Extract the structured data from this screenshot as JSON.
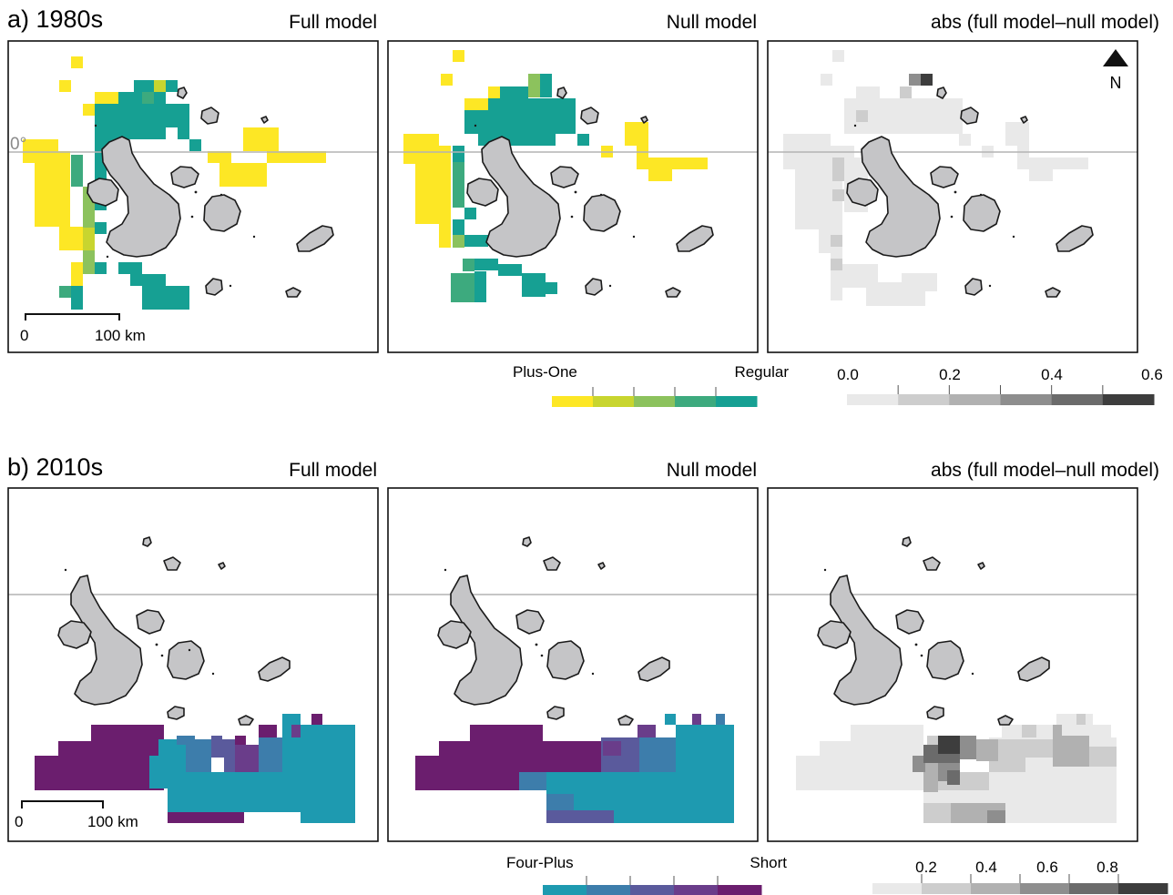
{
  "rows": [
    {
      "label": "a) 1980s",
      "panel_titles": [
        "Full model",
        "Null model",
        "abs (full model–null model)"
      ],
      "scale_bar": {
        "start": "0",
        "end": "100 km"
      },
      "equator_label": "0°",
      "north_label": "N",
      "category_legend": {
        "left": "Plus-One",
        "right": "Regular",
        "colors": [
          "#fde725",
          "#c8d52f",
          "#8cc25d",
          "#3daa7e",
          "#16a093"
        ]
      },
      "diff_legend": {
        "ticks": [
          "0.0",
          "0.2",
          "0.4",
          "0.6"
        ],
        "colors": [
          "#e9e9e9",
          "#cdcdcd",
          "#b1b1b1",
          "#8e8e8e",
          "#6b6b6b",
          "#3d3d3d"
        ]
      }
    },
    {
      "label": "b) 2010s",
      "panel_titles": [
        "Full model",
        "Null model",
        "abs (full model–null model)"
      ],
      "scale_bar": {
        "start": "0",
        "end": "100 km"
      },
      "category_legend": {
        "left": "Four-Plus",
        "right": "Short",
        "colors": [
          "#1e9ab0",
          "#3d7dab",
          "#5a5a9c",
          "#6a3d8a",
          "#6b1e6e"
        ]
      },
      "diff_legend": {
        "ticks": [
          "0.2",
          "0.4",
          "0.6",
          "0.8"
        ],
        "colors": [
          "#e9e9e9",
          "#cdcdcd",
          "#b1b1b1",
          "#8e8e8e",
          "#6b6b6b",
          "#3d3d3d"
        ]
      }
    }
  ]
}
